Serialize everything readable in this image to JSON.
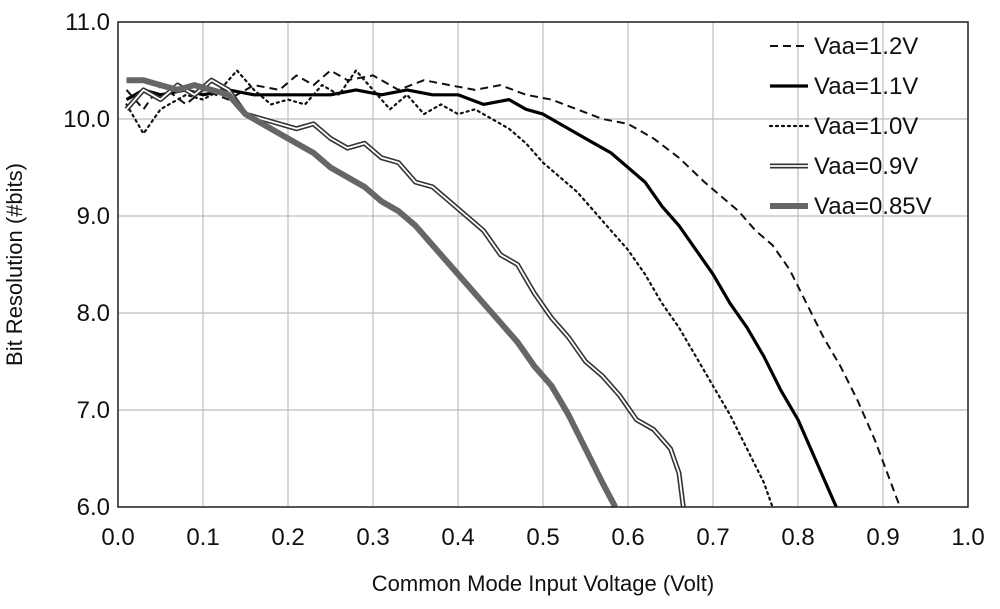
{
  "chart_data": {
    "type": "line",
    "title": "",
    "xlabel": "Common Mode Input Voltage (Volt)",
    "ylabel": "Bit Resolution (#bits)",
    "xlim": [
      0.0,
      1.0
    ],
    "ylim": [
      6.0,
      11.0
    ],
    "x_ticks": [
      "0.0",
      "0.1",
      "0.2",
      "0.3",
      "0.4",
      "0.5",
      "0.6",
      "0.7",
      "0.8",
      "0.9",
      "1.0"
    ],
    "y_ticks": [
      "6.0",
      "7.0",
      "8.0",
      "9.0",
      "10.0",
      "11.0"
    ],
    "grid": true,
    "legend_position": "top-right",
    "series": [
      {
        "name": "Vaa=1.2V",
        "style": "dashed",
        "color": "#111111",
        "points": [
          [
            0.01,
            10.3
          ],
          [
            0.03,
            10.1
          ],
          [
            0.05,
            10.35
          ],
          [
            0.08,
            10.15
          ],
          [
            0.1,
            10.3
          ],
          [
            0.13,
            10.2
          ],
          [
            0.16,
            10.35
          ],
          [
            0.19,
            10.3
          ],
          [
            0.21,
            10.45
          ],
          [
            0.23,
            10.35
          ],
          [
            0.25,
            10.5
          ],
          [
            0.27,
            10.4
          ],
          [
            0.3,
            10.45
          ],
          [
            0.33,
            10.3
          ],
          [
            0.36,
            10.4
          ],
          [
            0.39,
            10.35
          ],
          [
            0.42,
            10.3
          ],
          [
            0.45,
            10.35
          ],
          [
            0.48,
            10.25
          ],
          [
            0.51,
            10.2
          ],
          [
            0.54,
            10.1
          ],
          [
            0.57,
            10.0
          ],
          [
            0.6,
            9.95
          ],
          [
            0.63,
            9.8
          ],
          [
            0.66,
            9.6
          ],
          [
            0.69,
            9.35
          ],
          [
            0.71,
            9.2
          ],
          [
            0.73,
            9.05
          ],
          [
            0.75,
            8.85
          ],
          [
            0.77,
            8.7
          ],
          [
            0.79,
            8.45
          ],
          [
            0.81,
            8.1
          ],
          [
            0.83,
            7.75
          ],
          [
            0.85,
            7.45
          ],
          [
            0.87,
            7.1
          ],
          [
            0.89,
            6.7
          ],
          [
            0.905,
            6.35
          ],
          [
            0.92,
            6.0
          ]
        ]
      },
      {
        "name": "Vaa=1.1V",
        "style": "solid",
        "color": "#000000",
        "points": [
          [
            0.01,
            10.2
          ],
          [
            0.03,
            10.3
          ],
          [
            0.05,
            10.25
          ],
          [
            0.08,
            10.3
          ],
          [
            0.1,
            10.25
          ],
          [
            0.13,
            10.3
          ],
          [
            0.16,
            10.25
          ],
          [
            0.19,
            10.25
          ],
          [
            0.22,
            10.25
          ],
          [
            0.25,
            10.25
          ],
          [
            0.28,
            10.3
          ],
          [
            0.31,
            10.25
          ],
          [
            0.34,
            10.3
          ],
          [
            0.37,
            10.25
          ],
          [
            0.4,
            10.25
          ],
          [
            0.43,
            10.15
          ],
          [
            0.46,
            10.2
          ],
          [
            0.48,
            10.1
          ],
          [
            0.5,
            10.05
          ],
          [
            0.52,
            9.95
          ],
          [
            0.54,
            9.85
          ],
          [
            0.56,
            9.75
          ],
          [
            0.58,
            9.65
          ],
          [
            0.6,
            9.5
          ],
          [
            0.62,
            9.35
          ],
          [
            0.64,
            9.1
          ],
          [
            0.66,
            8.9
          ],
          [
            0.68,
            8.65
          ],
          [
            0.7,
            8.4
          ],
          [
            0.72,
            8.1
          ],
          [
            0.74,
            7.85
          ],
          [
            0.76,
            7.55
          ],
          [
            0.78,
            7.2
          ],
          [
            0.8,
            6.9
          ],
          [
            0.82,
            6.5
          ],
          [
            0.84,
            6.1
          ],
          [
            0.845,
            6.0
          ]
        ]
      },
      {
        "name": "Vaa=1.0V",
        "style": "dotted",
        "color": "#111111",
        "points": [
          [
            0.01,
            10.15
          ],
          [
            0.03,
            9.85
          ],
          [
            0.05,
            10.1
          ],
          [
            0.08,
            10.25
          ],
          [
            0.1,
            10.2
          ],
          [
            0.12,
            10.3
          ],
          [
            0.14,
            10.5
          ],
          [
            0.16,
            10.3
          ],
          [
            0.18,
            10.15
          ],
          [
            0.2,
            10.2
          ],
          [
            0.22,
            10.15
          ],
          [
            0.24,
            10.35
          ],
          [
            0.26,
            10.25
          ],
          [
            0.28,
            10.5
          ],
          [
            0.3,
            10.3
          ],
          [
            0.32,
            10.1
          ],
          [
            0.34,
            10.25
          ],
          [
            0.36,
            10.05
          ],
          [
            0.38,
            10.15
          ],
          [
            0.4,
            10.05
          ],
          [
            0.42,
            10.1
          ],
          [
            0.44,
            10.0
          ],
          [
            0.46,
            9.9
          ],
          [
            0.48,
            9.75
          ],
          [
            0.5,
            9.55
          ],
          [
            0.52,
            9.4
          ],
          [
            0.54,
            9.25
          ],
          [
            0.56,
            9.05
          ],
          [
            0.58,
            8.85
          ],
          [
            0.6,
            8.65
          ],
          [
            0.62,
            8.4
          ],
          [
            0.64,
            8.1
          ],
          [
            0.66,
            7.85
          ],
          [
            0.68,
            7.55
          ],
          [
            0.7,
            7.25
          ],
          [
            0.72,
            6.95
          ],
          [
            0.74,
            6.6
          ],
          [
            0.76,
            6.25
          ],
          [
            0.77,
            6.0
          ]
        ]
      },
      {
        "name": "Vaa=0.9V",
        "style": "double",
        "color": "#333333",
        "points": [
          [
            0.01,
            10.1
          ],
          [
            0.03,
            10.3
          ],
          [
            0.05,
            10.2
          ],
          [
            0.07,
            10.35
          ],
          [
            0.09,
            10.25
          ],
          [
            0.11,
            10.4
          ],
          [
            0.13,
            10.3
          ],
          [
            0.15,
            10.05
          ],
          [
            0.17,
            10.0
          ],
          [
            0.19,
            9.95
          ],
          [
            0.21,
            9.9
          ],
          [
            0.23,
            9.95
          ],
          [
            0.25,
            9.8
          ],
          [
            0.27,
            9.7
          ],
          [
            0.29,
            9.75
          ],
          [
            0.31,
            9.6
          ],
          [
            0.33,
            9.55
          ],
          [
            0.35,
            9.35
          ],
          [
            0.37,
            9.3
          ],
          [
            0.39,
            9.15
          ],
          [
            0.41,
            9.0
          ],
          [
            0.43,
            8.85
          ],
          [
            0.45,
            8.6
          ],
          [
            0.47,
            8.5
          ],
          [
            0.49,
            8.2
          ],
          [
            0.51,
            7.95
          ],
          [
            0.53,
            7.75
          ],
          [
            0.55,
            7.5
          ],
          [
            0.57,
            7.35
          ],
          [
            0.59,
            7.15
          ],
          [
            0.61,
            6.9
          ],
          [
            0.63,
            6.8
          ],
          [
            0.65,
            6.6
          ],
          [
            0.66,
            6.35
          ],
          [
            0.665,
            6.0
          ]
        ]
      },
      {
        "name": "Vaa=0.85V",
        "style": "thick",
        "color": "#666666",
        "points": [
          [
            0.01,
            10.4
          ],
          [
            0.03,
            10.4
          ],
          [
            0.05,
            10.35
          ],
          [
            0.07,
            10.3
          ],
          [
            0.09,
            10.35
          ],
          [
            0.11,
            10.3
          ],
          [
            0.13,
            10.25
          ],
          [
            0.15,
            10.05
          ],
          [
            0.17,
            9.95
          ],
          [
            0.19,
            9.85
          ],
          [
            0.21,
            9.75
          ],
          [
            0.23,
            9.65
          ],
          [
            0.25,
            9.5
          ],
          [
            0.27,
            9.4
          ],
          [
            0.29,
            9.3
          ],
          [
            0.31,
            9.15
          ],
          [
            0.33,
            9.05
          ],
          [
            0.35,
            8.9
          ],
          [
            0.37,
            8.7
          ],
          [
            0.39,
            8.5
          ],
          [
            0.41,
            8.3
          ],
          [
            0.43,
            8.1
          ],
          [
            0.45,
            7.9
          ],
          [
            0.47,
            7.7
          ],
          [
            0.49,
            7.45
          ],
          [
            0.51,
            7.25
          ],
          [
            0.53,
            6.95
          ],
          [
            0.55,
            6.6
          ],
          [
            0.57,
            6.25
          ],
          [
            0.585,
            6.0
          ]
        ]
      }
    ]
  }
}
